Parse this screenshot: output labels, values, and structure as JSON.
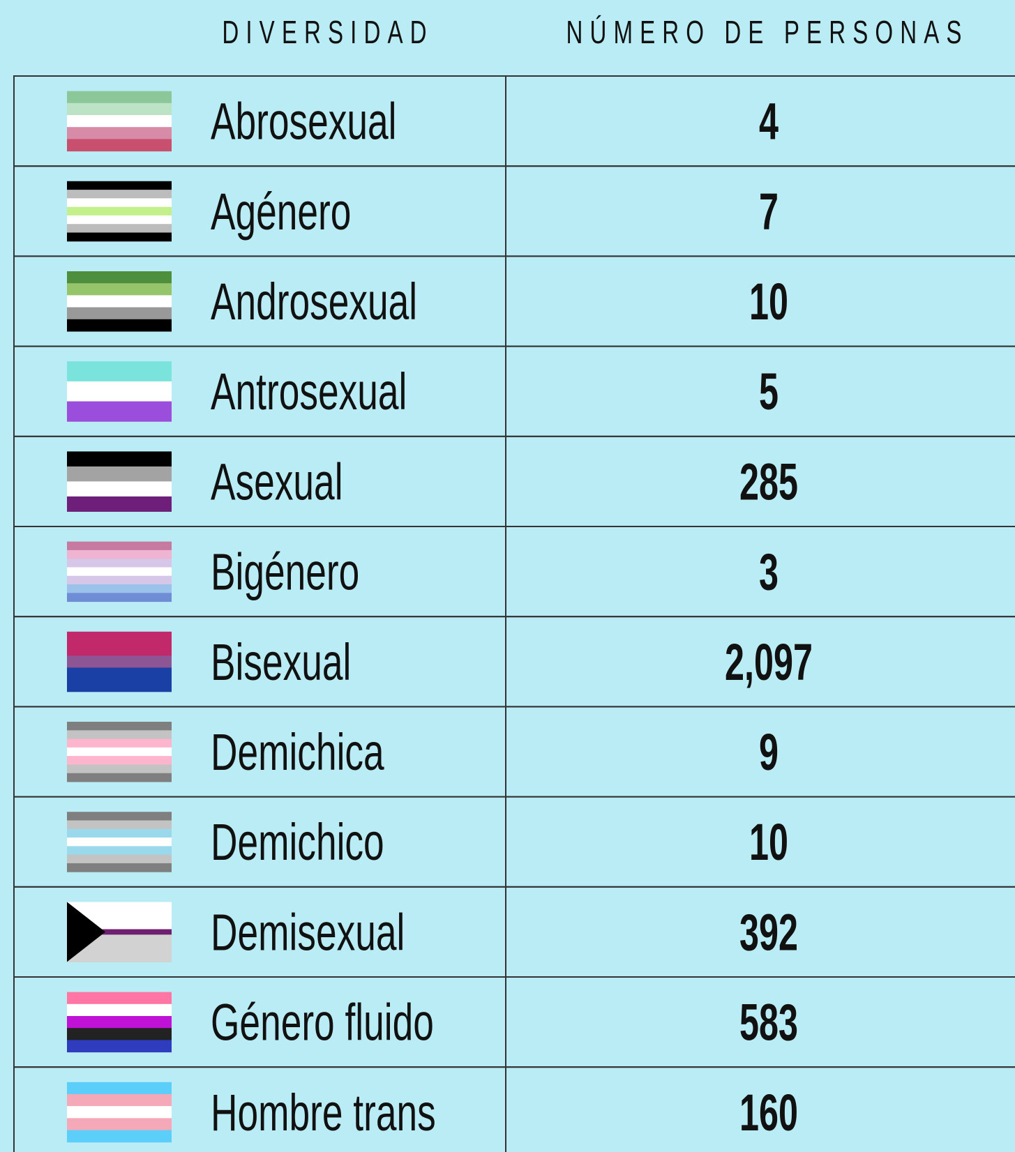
{
  "header": {
    "columns": [
      "DIVERSIDAD",
      "NÚMERO DE PERSONAS"
    ]
  },
  "table": {
    "rows": [
      [
        "Abrosexual",
        4
      ],
      [
        "Agénero",
        7
      ],
      [
        "Androsexual",
        10
      ],
      [
        "Antrosexual",
        5
      ],
      [
        "Asexual",
        285
      ],
      [
        "Bigénero",
        3
      ],
      [
        "Bisexual",
        "2,097"
      ],
      [
        "Demichica",
        9
      ],
      [
        "Demichico",
        10
      ],
      [
        "Demisexual",
        392
      ],
      [
        "Género fluido",
        583
      ],
      [
        "Hombre trans",
        160
      ]
    ]
  }
}
